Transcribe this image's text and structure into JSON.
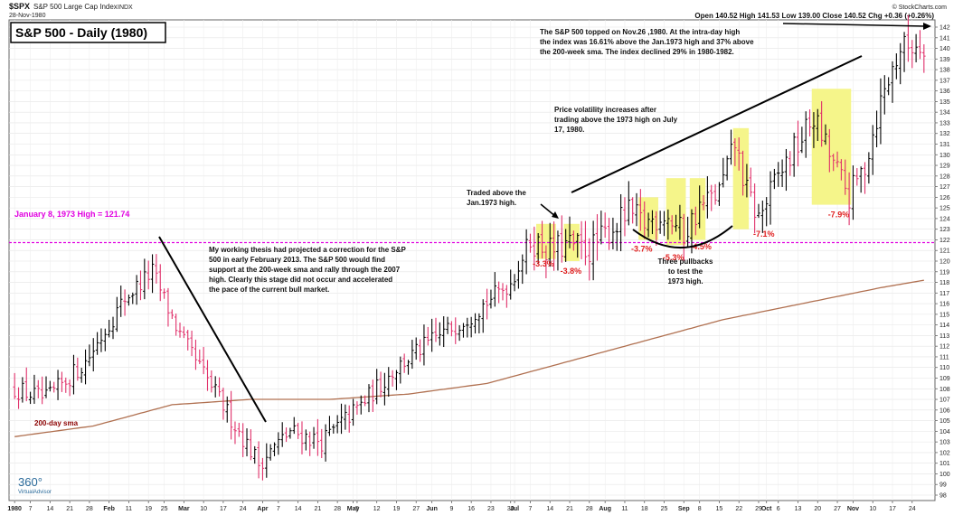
{
  "header": {
    "symbol": "$SPX",
    "name": "S&P 500 Large Cap Index",
    "exchange": "INDX",
    "date": "28-Nov-1980",
    "ohlc_label": "Open 140.52  High 141.53  Low 139.00  Close 140.52  Chg +0.36 (+0.26%)",
    "source": "© StockCharts.com"
  },
  "logo": {
    "main": "360°",
    "sub": "VirtualAdvisor"
  },
  "colors": {
    "up": "#000000",
    "down": "#e0306a",
    "highlight": "#f5f58a",
    "sma": "#b07050",
    "reference": "#e000e0",
    "pct": "#e02020"
  },
  "chart_data": {
    "type": "ohlc",
    "title": "S&P 500 - Daily (1980)",
    "ylim": [
      98,
      142
    ],
    "y_ticks": [
      98,
      99,
      100,
      101,
      102,
      103,
      104,
      105,
      106,
      107,
      108,
      109,
      110,
      111,
      112,
      113,
      114,
      115,
      116,
      117,
      118,
      119,
      120,
      121,
      122,
      123,
      124,
      125,
      126,
      127,
      128,
      129,
      130,
      131,
      132,
      133,
      134,
      135,
      136,
      137,
      138,
      139,
      140,
      141,
      142
    ],
    "x_ticks": [
      {
        "label": "1980",
        "bar": 0
      },
      {
        "label": "7",
        "bar": 4
      },
      {
        "label": "14",
        "bar": 9
      },
      {
        "label": "21",
        "bar": 14
      },
      {
        "label": "28",
        "bar": 19
      },
      {
        "label": "Feb",
        "bar": 24
      },
      {
        "label": "11",
        "bar": 29
      },
      {
        "label": "19",
        "bar": 34
      },
      {
        "label": "25",
        "bar": 38
      },
      {
        "label": "Mar",
        "bar": 43
      },
      {
        "label": "10",
        "bar": 48
      },
      {
        "label": "17",
        "bar": 53
      },
      {
        "label": "24",
        "bar": 58
      },
      {
        "label": "Apr",
        "bar": 63
      },
      {
        "label": "7",
        "bar": 67
      },
      {
        "label": "14",
        "bar": 72
      },
      {
        "label": "21",
        "bar": 77
      },
      {
        "label": "28",
        "bar": 82
      },
      {
        "label": "May",
        "bar": 86
      },
      {
        "label": "5",
        "bar": 87
      },
      {
        "label": "12",
        "bar": 92
      },
      {
        "label": "19",
        "bar": 97
      },
      {
        "label": "27",
        "bar": 102
      },
      {
        "label": "Jun",
        "bar": 106
      },
      {
        "label": "9",
        "bar": 111
      },
      {
        "label": "16",
        "bar": 116
      },
      {
        "label": "23",
        "bar": 121
      },
      {
        "label": "30",
        "bar": 126
      },
      {
        "label": "Jul",
        "bar": 127
      },
      {
        "label": "7",
        "bar": 131
      },
      {
        "label": "14",
        "bar": 136
      },
      {
        "label": "21",
        "bar": 141
      },
      {
        "label": "28",
        "bar": 146
      },
      {
        "label": "Aug",
        "bar": 150
      },
      {
        "label": "11",
        "bar": 155
      },
      {
        "label": "18",
        "bar": 160
      },
      {
        "label": "25",
        "bar": 165
      },
      {
        "label": "Sep",
        "bar": 170
      },
      {
        "label": "8",
        "bar": 174
      },
      {
        "label": "15",
        "bar": 179
      },
      {
        "label": "22",
        "bar": 184
      },
      {
        "label": "29",
        "bar": 189
      },
      {
        "label": "Oct",
        "bar": 191
      },
      {
        "label": "6",
        "bar": 194
      },
      {
        "label": "13",
        "bar": 199
      },
      {
        "label": "20",
        "bar": 204
      },
      {
        "label": "27",
        "bar": 209
      },
      {
        "label": "Nov",
        "bar": 213
      },
      {
        "label": "10",
        "bar": 218
      },
      {
        "label": "17",
        "bar": 223
      },
      {
        "label": "24",
        "bar": 228
      }
    ],
    "price_path": [
      [
        0,
        108
      ],
      [
        8,
        107
      ],
      [
        18,
        110.5
      ],
      [
        28,
        116.5
      ],
      [
        35,
        119
      ],
      [
        42,
        113
      ],
      [
        52,
        107
      ],
      [
        62,
        101
      ],
      [
        70,
        104
      ],
      [
        78,
        103
      ],
      [
        88,
        106.5
      ],
      [
        97,
        110
      ],
      [
        106,
        112.5
      ],
      [
        116,
        115
      ],
      [
        126,
        118
      ],
      [
        131,
        122
      ],
      [
        136,
        121
      ],
      [
        141,
        121.5
      ],
      [
        146,
        121
      ],
      [
        150,
        122.5
      ],
      [
        156,
        124.5
      ],
      [
        160,
        123.5
      ],
      [
        165,
        124.5
      ],
      [
        170,
        122.5
      ],
      [
        174,
        125
      ],
      [
        179,
        126.5
      ],
      [
        183,
        131
      ],
      [
        186,
        126.5
      ],
      [
        189,
        124
      ],
      [
        194,
        128
      ],
      [
        199,
        131
      ],
      [
        203,
        133.5
      ],
      [
        207,
        130
      ],
      [
        212,
        126
      ],
      [
        216,
        129
      ],
      [
        220,
        135
      ],
      [
        225,
        140
      ],
      [
        230,
        140.5
      ]
    ],
    "sma_path": [
      [
        0,
        103.5
      ],
      [
        20,
        104.5
      ],
      [
        40,
        106.5
      ],
      [
        60,
        107
      ],
      [
        80,
        107
      ],
      [
        100,
        107.5
      ],
      [
        120,
        108.5
      ],
      [
        140,
        110.5
      ],
      [
        160,
        112.5
      ],
      [
        180,
        114.5
      ],
      [
        200,
        116
      ],
      [
        220,
        117.5
      ],
      [
        231,
        118.2
      ]
    ],
    "sma_label": "200-day sma",
    "reference_line": {
      "value": 121.74,
      "label": "January 8, 1973 High = 121.74"
    },
    "highlights": [
      {
        "start": 133,
        "end": 137,
        "low": 120.2,
        "high": 123.5
      },
      {
        "start": 140,
        "end": 143,
        "low": 120,
        "high": 123.5
      },
      {
        "start": 159,
        "end": 163,
        "low": 122,
        "high": 126
      },
      {
        "start": 166,
        "end": 170,
        "low": 121.5,
        "high": 127.8
      },
      {
        "start": 172,
        "end": 175,
        "low": 122,
        "high": 127.8
      },
      {
        "start": 183,
        "end": 186,
        "low": 123,
        "high": 132.5
      },
      {
        "start": 203,
        "end": 212,
        "low": 125.3,
        "high": 136.2
      }
    ],
    "pullback_labels": [
      {
        "text": "-3.3%",
        "bar": 133,
        "y": 119.5
      },
      {
        "text": "-3.8%",
        "bar": 140,
        "y": 118.8
      },
      {
        "text": "-3.7%",
        "bar": 158,
        "y": 120.9
      },
      {
        "text": "-5.3%",
        "bar": 166,
        "y": 120.1
      },
      {
        "text": "-4.5%",
        "bar": 173,
        "y": 121.1
      },
      {
        "text": "-7.1%",
        "bar": 189,
        "y": 122.3
      },
      {
        "text": "-7.9%",
        "bar": 208,
        "y": 124.1
      }
    ],
    "annotations": {
      "top": "The S&P 500 topped on Nov.26 ,1980. At the intra-day high the index was 16.61% above the Jan.1973 high and 37% above the 200-week sma. The index declined 29% in 1980-1982.",
      "volatility": "Price volatility increases after trading above the 1973 high on July 17, 1980.",
      "traded_above": "Traded above the Jan.1973 high.",
      "thesis": "My working thesis had projected a correction for the S&P 500 in early February 2013. The S&P 500 would find support at the 200-week sma and rally through the 2007 high. Clearly this stage did not occur and accelerated the pace of the current bull market.",
      "pullbacks": "Three pullbacks to test the 1973 high."
    }
  }
}
